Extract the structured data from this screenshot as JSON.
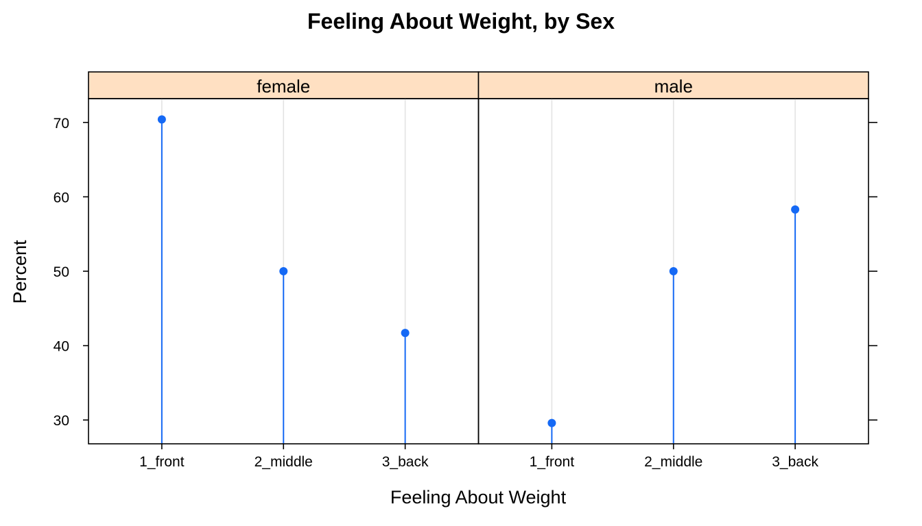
{
  "colors": {
    "point": "#1569f5",
    "strip": "#ffe0c2",
    "reference": "#e3e3e3"
  },
  "chart_data": {
    "type": "scatter",
    "style": "lollipop",
    "title": "Feeling About Weight, by Sex",
    "xlabel": "Feeling About Weight",
    "ylabel": "Percent",
    "ylim": [
      26.8,
      73.2
    ],
    "yticks": [
      30,
      40,
      50,
      60,
      70
    ],
    "categories": [
      "1_front",
      "2_middle",
      "3_back"
    ],
    "panels": [
      {
        "name": "female",
        "values": [
          70.4,
          50.0,
          41.7
        ]
      },
      {
        "name": "male",
        "values": [
          29.6,
          50.0,
          58.3
        ]
      }
    ],
    "grid": false,
    "legend": "none"
  }
}
